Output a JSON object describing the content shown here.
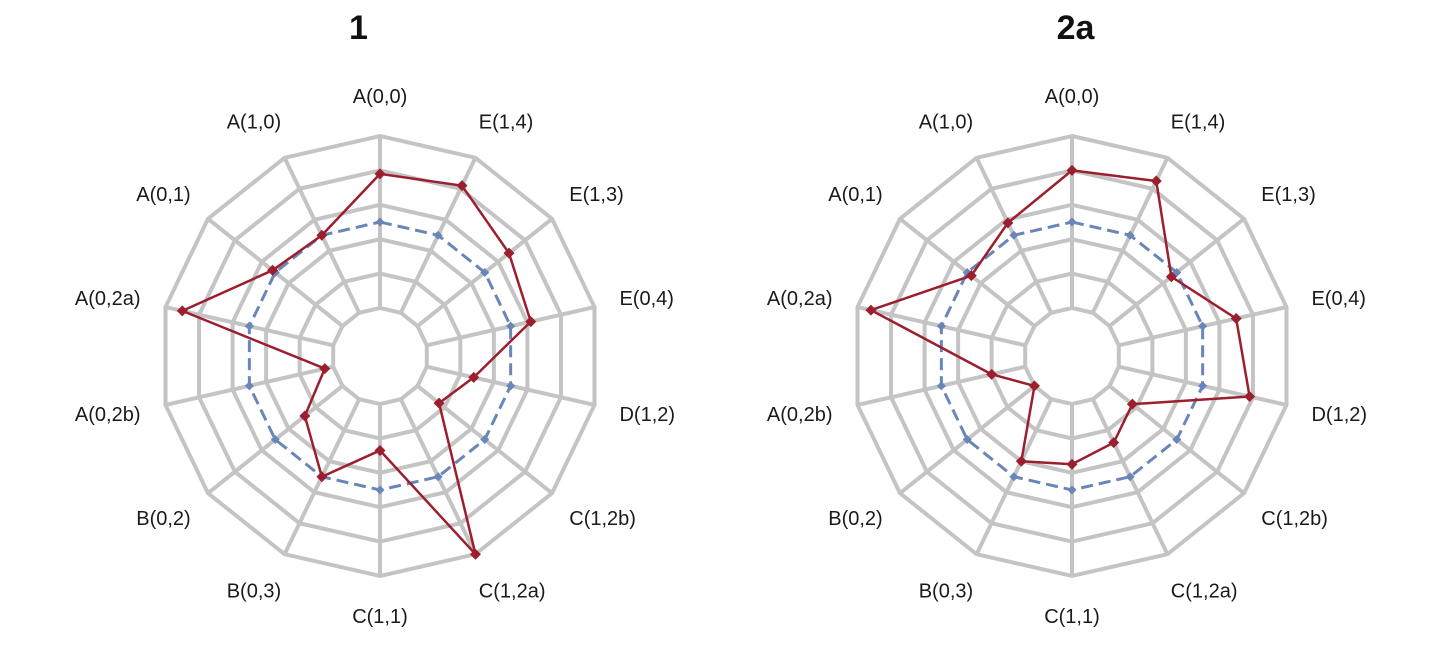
{
  "chart_data": [
    {
      "type": "radar",
      "title": "1",
      "categories": [
        "A(0,0)",
        "E(1,4)",
        "E(1,3)",
        "E(0,4)",
        "D(1,2)",
        "C(1,2b)",
        "C(1,2a)",
        "C(1,1)",
        "B(0,3)",
        "B(0,2)",
        "A(0,2b)",
        "A(0,2a)",
        "A(0,1)",
        "A(1,0)"
      ],
      "rlim": [
        0,
        1
      ],
      "grid": true,
      "series": [
        {
          "values": [
            0.5,
            0.5,
            0.5,
            0.5,
            0.5,
            0.5,
            0.5,
            0.5,
            0.5,
            0.5,
            0.5,
            0.5,
            0.5,
            0.5
          ],
          "color": "#6a86b8",
          "style": "dashed"
        },
        {
          "values": [
            0.78,
            0.82,
            0.68,
            0.62,
            0.28,
            0.16,
            1.0,
            0.27,
            0.5,
            0.28,
            0.05,
            0.9,
            0.52,
            0.5
          ],
          "color": "#9b1f2e",
          "style": "solid"
        }
      ]
    },
    {
      "type": "radar",
      "title": "2a",
      "categories": [
        "A(0,0)",
        "E(1,4)",
        "E(1,3)",
        "E(0,4)",
        "D(1,2)",
        "C(1,2b)",
        "C(1,2a)",
        "C(1,1)",
        "B(0,3)",
        "B(0,2)",
        "A(0,2b)",
        "A(0,2a)",
        "A(0,1)",
        "A(1,0)"
      ],
      "rlim": [
        0,
        1
      ],
      "grid": true,
      "series": [
        {
          "values": [
            0.5,
            0.5,
            0.5,
            0.5,
            0.5,
            0.5,
            0.5,
            0.5,
            0.5,
            0.5,
            0.5,
            0.5,
            0.5,
            0.5
          ],
          "color": "#6a86b8",
          "style": "dashed"
        },
        {
          "values": [
            0.8,
            0.85,
            0.46,
            0.7,
            0.78,
            0.17,
            0.28,
            0.35,
            0.4,
            0.0,
            0.2,
            0.92,
            0.47,
            0.58
          ],
          "color": "#9b1f2e",
          "style": "solid"
        }
      ]
    }
  ]
}
